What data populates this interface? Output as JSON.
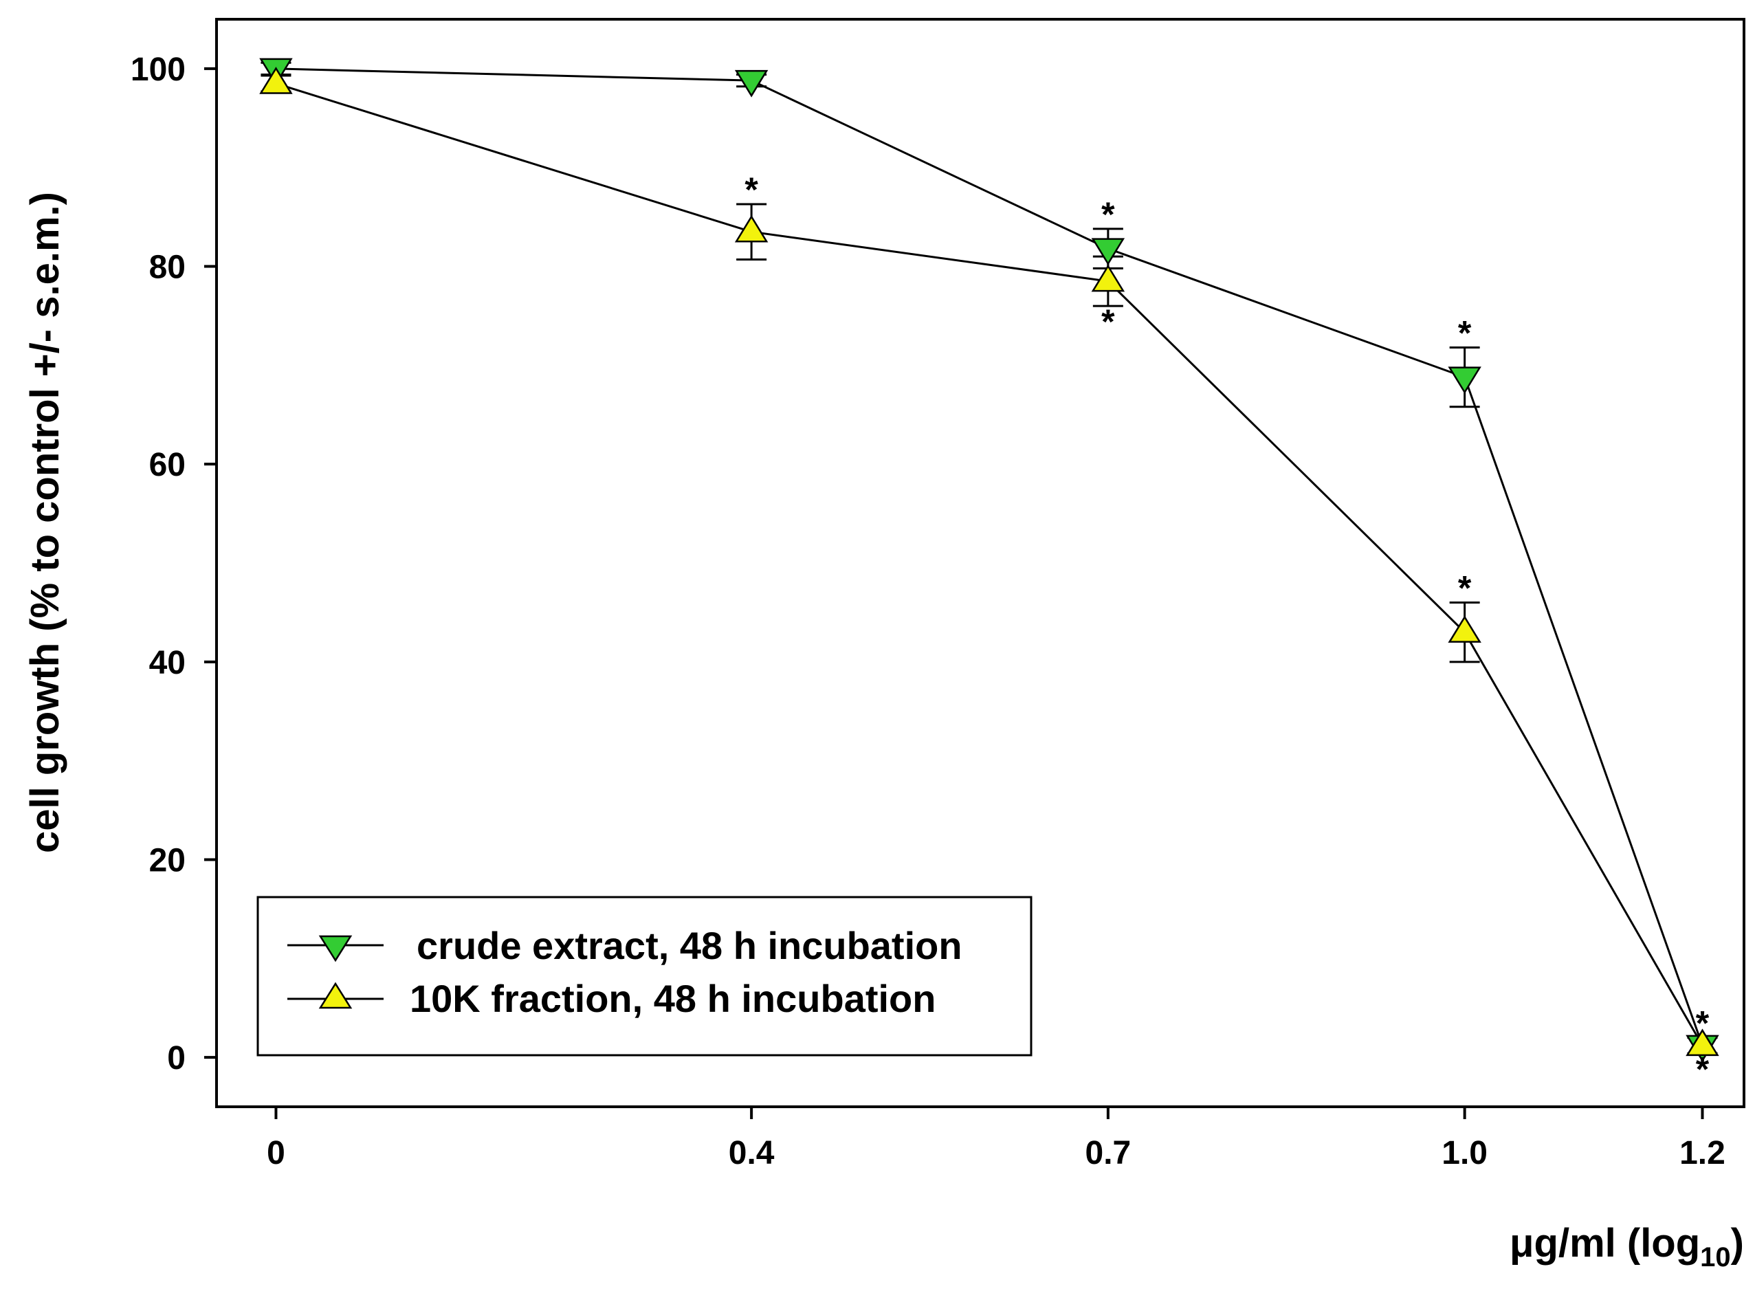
{
  "chart_data": {
    "type": "line",
    "title": "",
    "xlabel": "μg/ml (log",
    "xlabel_subscript": "10",
    "xlabel_close": ")",
    "ylabel": "cell growth (% to control +/- s.e.m.)",
    "categories": [
      "0",
      "0.4",
      "0.7",
      "1.0",
      "1.2"
    ],
    "x": [
      0,
      0.4,
      0.7,
      1.0,
      1.2
    ],
    "yticks": [
      0,
      20,
      40,
      60,
      80,
      100
    ],
    "ytick_labels": [
      "0",
      "20",
      "40",
      "60",
      "80",
      "100"
    ],
    "ylim": [
      -5,
      105
    ],
    "xlim": [
      -0.05,
      1.235
    ],
    "grid": false,
    "legend_position": "bottom-left",
    "significance_marker": "*",
    "series": [
      {
        "name": "crude extract, 48 h incubation",
        "marker": "triangle-down",
        "color": "#33cc33",
        "values": [
          100,
          98.8,
          81.8,
          68.8,
          1.2
        ],
        "errors": [
          0.6,
          0.6,
          2.0,
          3.0,
          0.8
        ],
        "significant": [
          false,
          false,
          true,
          true,
          true
        ],
        "star_position": [
          "",
          "",
          "above",
          "above",
          "above"
        ]
      },
      {
        "name": "10K fraction, 48 h incubation",
        "marker": "triangle-up",
        "color": "#f2f20d",
        "values": [
          98.5,
          83.5,
          78.5,
          43.0,
          1.2
        ],
        "errors": [
          0.8,
          2.8,
          2.5,
          3.0,
          0.8
        ],
        "significant": [
          false,
          true,
          true,
          true,
          true
        ],
        "star_position": [
          "",
          "above",
          "below",
          "above",
          "below"
        ]
      }
    ]
  }
}
